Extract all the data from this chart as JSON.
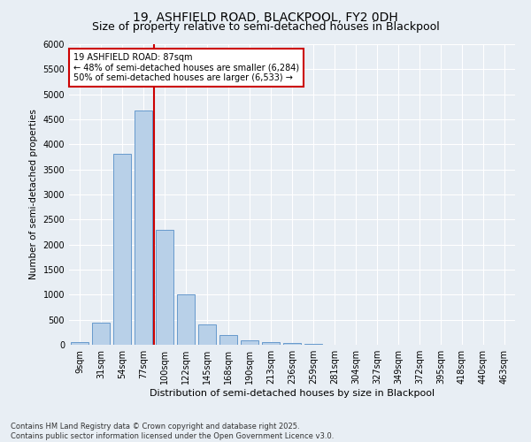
{
  "title1": "19, ASHFIELD ROAD, BLACKPOOL, FY2 0DH",
  "title2": "Size of property relative to semi-detached houses in Blackpool",
  "xlabel": "Distribution of semi-detached houses by size in Blackpool",
  "ylabel": "Number of semi-detached properties",
  "categories": [
    "9sqm",
    "31sqm",
    "54sqm",
    "77sqm",
    "100sqm",
    "122sqm",
    "145sqm",
    "168sqm",
    "190sqm",
    "213sqm",
    "236sqm",
    "259sqm",
    "281sqm",
    "304sqm",
    "327sqm",
    "349sqm",
    "372sqm",
    "395sqm",
    "418sqm",
    "440sqm",
    "463sqm"
  ],
  "values": [
    50,
    440,
    3820,
    4670,
    2300,
    1000,
    400,
    200,
    90,
    55,
    30,
    10,
    5,
    0,
    0,
    0,
    0,
    0,
    0,
    0,
    0
  ],
  "bar_color": "#b8d0e8",
  "bar_edge_color": "#6699cc",
  "vline_color": "#cc0000",
  "annotation_text": "19 ASHFIELD ROAD: 87sqm\n← 48% of semi-detached houses are smaller (6,284)\n50% of semi-detached houses are larger (6,533) →",
  "annotation_box_color": "#ffffff",
  "annotation_box_edge": "#cc0000",
  "ylim": [
    0,
    6000
  ],
  "yticks": [
    0,
    500,
    1000,
    1500,
    2000,
    2500,
    3000,
    3500,
    4000,
    4500,
    5000,
    5500,
    6000
  ],
  "background_color": "#e8eef4",
  "footer": "Contains HM Land Registry data © Crown copyright and database right 2025.\nContains public sector information licensed under the Open Government Licence v3.0.",
  "title_fontsize": 10,
  "subtitle_fontsize": 9,
  "annotation_fontsize": 7,
  "footer_fontsize": 6,
  "ylabel_fontsize": 7.5,
  "xlabel_fontsize": 8,
  "tick_fontsize": 7
}
